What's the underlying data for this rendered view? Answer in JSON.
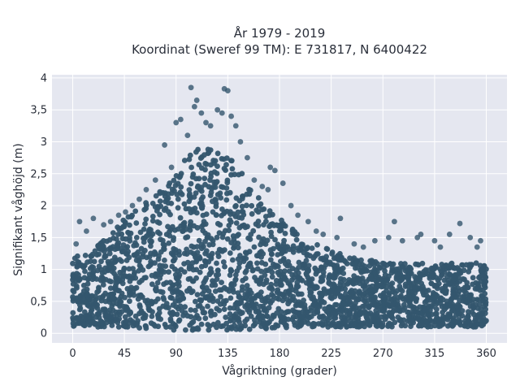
{
  "chart_data": {
    "type": "scatter",
    "title_lines": [
      "År 1979 - 2019",
      "Koordinat (Sweref 99 TM): E 731817, N 6400422"
    ],
    "xlabel": "Vågriktning (grader)",
    "ylabel": "Signifikant våghöjd (m)",
    "xlim": [
      -18,
      378
    ],
    "ylim": [
      -0.15,
      4.05
    ],
    "x_ticks": [
      0,
      45,
      90,
      135,
      180,
      225,
      270,
      315,
      360
    ],
    "x_tick_labels": [
      "0",
      "45",
      "90",
      "135",
      "180",
      "225",
      "270",
      "315",
      "360"
    ],
    "y_ticks": [
      0,
      0.5,
      1,
      1.5,
      2,
      2.5,
      3,
      3.5,
      4
    ],
    "y_tick_labels": [
      "0",
      "0,5",
      "1",
      "1,5",
      "2",
      "2,5",
      "3",
      "3,5",
      "4"
    ],
    "grid": true,
    "legend": false,
    "colors": {
      "marker": "#34566e",
      "plot_bg": "#e5e7f0",
      "grid": "#ffffff"
    },
    "envelope": {
      "direction": [
        0,
        10,
        20,
        30,
        45,
        60,
        75,
        90,
        100,
        110,
        120,
        130,
        140,
        150,
        160,
        180,
        200,
        225,
        250,
        270,
        300,
        330,
        360
      ],
      "wave_height_min": [
        0.1,
        0.1,
        0.1,
        0.1,
        0.1,
        0.08,
        0.06,
        0.05,
        0.05,
        0.05,
        0.05,
        0.05,
        0.05,
        0.05,
        0.06,
        0.08,
        0.1,
        0.1,
        0.1,
        0.1,
        0.1,
        0.1,
        0.1
      ],
      "wave_height_dense_max": [
        1.2,
        1.25,
        1.35,
        1.5,
        1.8,
        2.0,
        2.2,
        2.5,
        2.8,
        3.0,
        2.9,
        2.8,
        2.7,
        2.5,
        2.2,
        1.8,
        1.5,
        1.3,
        1.2,
        1.1,
        1.1,
        1.1,
        1.1
      ]
    },
    "outliers": [
      {
        "x": 3,
        "y": 1.4
      },
      {
        "x": 6,
        "y": 1.75
      },
      {
        "x": 12,
        "y": 1.6
      },
      {
        "x": 18,
        "y": 1.8
      },
      {
        "x": 27,
        "y": 1.7
      },
      {
        "x": 33,
        "y": 1.75
      },
      {
        "x": 40,
        "y": 1.85
      },
      {
        "x": 46,
        "y": 1.9
      },
      {
        "x": 52,
        "y": 2.0
      },
      {
        "x": 58,
        "y": 2.1
      },
      {
        "x": 64,
        "y": 2.25
      },
      {
        "x": 72,
        "y": 2.4
      },
      {
        "x": 80,
        "y": 2.95
      },
      {
        "x": 86,
        "y": 2.6
      },
      {
        "x": 90,
        "y": 3.3
      },
      {
        "x": 94,
        "y": 3.35
      },
      {
        "x": 100,
        "y": 3.1
      },
      {
        "x": 103,
        "y": 3.85
      },
      {
        "x": 106,
        "y": 3.55
      },
      {
        "x": 108,
        "y": 3.65
      },
      {
        "x": 112,
        "y": 3.45
      },
      {
        "x": 116,
        "y": 3.3
      },
      {
        "x": 120,
        "y": 3.25
      },
      {
        "x": 126,
        "y": 3.5
      },
      {
        "x": 130,
        "y": 3.45
      },
      {
        "x": 132,
        "y": 3.83
      },
      {
        "x": 135,
        "y": 3.8
      },
      {
        "x": 138,
        "y": 3.4
      },
      {
        "x": 142,
        "y": 3.25
      },
      {
        "x": 146,
        "y": 3.0
      },
      {
        "x": 152,
        "y": 2.75
      },
      {
        "x": 158,
        "y": 2.4
      },
      {
        "x": 165,
        "y": 2.3
      },
      {
        "x": 170,
        "y": 2.25
      },
      {
        "x": 172,
        "y": 2.6
      },
      {
        "x": 176,
        "y": 2.55
      },
      {
        "x": 183,
        "y": 2.35
      },
      {
        "x": 190,
        "y": 2.0
      },
      {
        "x": 196,
        "y": 1.85
      },
      {
        "x": 205,
        "y": 1.75
      },
      {
        "x": 212,
        "y": 1.6
      },
      {
        "x": 218,
        "y": 1.55
      },
      {
        "x": 230,
        "y": 1.5
      },
      {
        "x": 233,
        "y": 1.8
      },
      {
        "x": 245,
        "y": 1.4
      },
      {
        "x": 253,
        "y": 1.35
      },
      {
        "x": 263,
        "y": 1.45
      },
      {
        "x": 275,
        "y": 1.5
      },
      {
        "x": 280,
        "y": 1.75
      },
      {
        "x": 287,
        "y": 1.45
      },
      {
        "x": 300,
        "y": 1.5
      },
      {
        "x": 303,
        "y": 1.55
      },
      {
        "x": 315,
        "y": 1.45
      },
      {
        "x": 320,
        "y": 1.35
      },
      {
        "x": 328,
        "y": 1.55
      },
      {
        "x": 337,
        "y": 1.72
      },
      {
        "x": 346,
        "y": 1.5
      },
      {
        "x": 352,
        "y": 1.35
      },
      {
        "x": 355,
        "y": 1.45
      }
    ]
  }
}
